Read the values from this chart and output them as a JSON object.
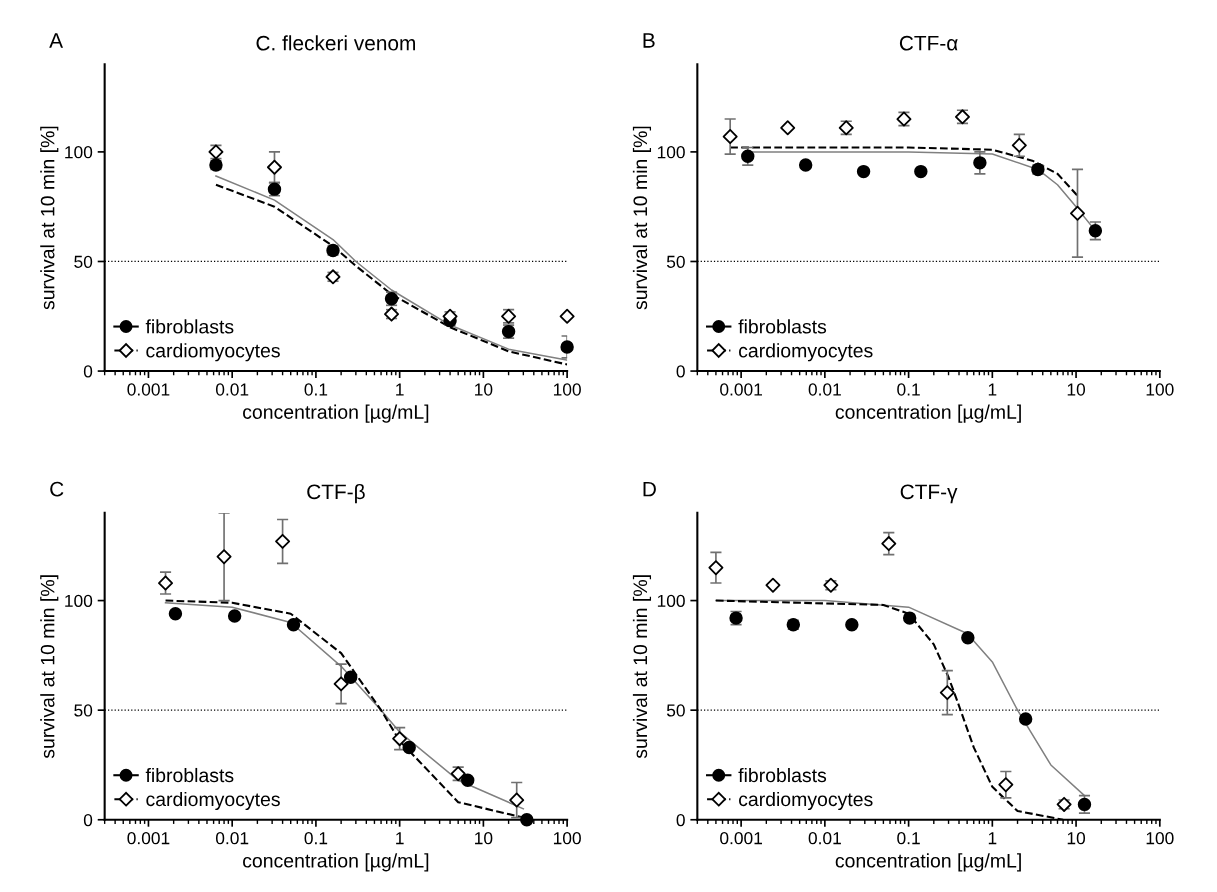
{
  "chart_data": [
    {
      "type": "scatter",
      "title": "C. fleckeri venom",
      "annotations": [
        "A"
      ],
      "xlabel": "concentration [µg/mL]",
      "ylabel": "survival at 10 min [%]",
      "log": "x",
      "xlim": [
        0.0003,
        100
      ],
      "xticks": [
        0.001,
        0.01,
        0.1,
        1,
        10,
        100
      ],
      "ylim": [
        0,
        140
      ],
      "yticks": [
        0,
        50,
        100
      ],
      "grid": false,
      "legend": "bottom left",
      "ref_lines": [
        {
          "axis": "y",
          "value": 50,
          "line_style": "dotted",
          "color": "#000000"
        }
      ],
      "series": [
        {
          "type": "line",
          "color": "#808080",
          "line_style": "solid",
          "x": [
            0.0064,
            0.032,
            0.16,
            0.3,
            0.8,
            4,
            20,
            100
          ],
          "values": [
            89,
            78,
            60,
            50,
            37,
            21,
            10,
            5
          ]
        },
        {
          "type": "line",
          "color": "#000000",
          "line_style": "dashed",
          "x": [
            0.0064,
            0.032,
            0.16,
            0.3,
            0.8,
            4,
            20,
            100
          ],
          "values": [
            85,
            75,
            57,
            48,
            35,
            20,
            9,
            3
          ]
        },
        {
          "type": "scatter",
          "name": "fibroblasts",
          "color": "#000000",
          "marker": "circle",
          "line_style": "solid",
          "x": [
            0.0064,
            0.032,
            0.16,
            0.8,
            4,
            20,
            100
          ],
          "values": [
            94,
            83,
            55,
            33,
            23,
            18,
            11
          ],
          "errors": [
            2,
            3,
            2,
            3,
            2,
            3,
            5
          ]
        },
        {
          "type": "scatter",
          "name": "cardiomyocytes",
          "color": "#000000",
          "marker": "diamond",
          "line_style": "dashed",
          "x": [
            0.0064,
            0.032,
            0.16,
            0.8,
            4,
            20,
            100
          ],
          "values": [
            100,
            93,
            43,
            26,
            25,
            25,
            25
          ],
          "errors": [
            3,
            7,
            2,
            2,
            2,
            3,
            null
          ]
        }
      ]
    },
    {
      "type": "scatter",
      "title": "CTF-α",
      "annotations": [
        "B"
      ],
      "xlabel": "concentration [µg/mL]",
      "ylabel": "survival at 10 min [%]",
      "log": "x",
      "xlim": [
        0.0003,
        100
      ],
      "xticks": [
        0.001,
        0.01,
        0.1,
        1,
        10,
        100
      ],
      "ylim": [
        0,
        140
      ],
      "yticks": [
        0,
        50,
        100
      ],
      "grid": false,
      "legend": "bottom left",
      "ref_lines": [
        {
          "axis": "y",
          "value": 50,
          "line_style": "dotted",
          "color": "#000000"
        }
      ],
      "series": [
        {
          "type": "line",
          "color": "#808080",
          "line_style": "solid",
          "x": [
            0.0012,
            0.1,
            1,
            3.5,
            6,
            10,
            17
          ],
          "values": [
            100,
            100,
            99,
            92,
            85,
            75,
            64
          ]
        },
        {
          "type": "line",
          "color": "#000000",
          "line_style": "dashed",
          "x": [
            0.00074,
            0.1,
            1,
            3,
            6,
            10.4
          ],
          "values": [
            102,
            102,
            101,
            96,
            90,
            80
          ]
        },
        {
          "type": "scatter",
          "name": "fibroblasts",
          "color": "#000000",
          "marker": "circle",
          "line_style": "solid",
          "x": [
            0.0012,
            0.0059,
            0.029,
            0.14,
            0.71,
            3.5,
            17
          ],
          "values": [
            98,
            94,
            91,
            91,
            95,
            92,
            64
          ],
          "errors": [
            4,
            null,
            null,
            null,
            5,
            2,
            4
          ]
        },
        {
          "type": "scatter",
          "name": "cardiomyocytes",
          "color": "#000000",
          "marker": "diamond",
          "line_style": "dashed",
          "x": [
            0.00074,
            0.0036,
            0.018,
            0.088,
            0.44,
            2.1,
            10.4
          ],
          "values": [
            107,
            111,
            111,
            115,
            116,
            103,
            72
          ],
          "errors": [
            8,
            null,
            3,
            3,
            3,
            5,
            20
          ]
        }
      ]
    },
    {
      "type": "scatter",
      "title": "CTF-β",
      "annotations": [
        "C"
      ],
      "xlabel": "concentration [µg/mL]",
      "ylabel": "survival at 10 min [%]",
      "log": "x",
      "xlim": [
        0.0003,
        100
      ],
      "xticks": [
        0.001,
        0.01,
        0.1,
        1,
        10,
        100
      ],
      "ylim": [
        0,
        140
      ],
      "yticks": [
        0,
        50,
        100
      ],
      "grid": false,
      "legend": "bottom left",
      "ref_lines": [
        {
          "axis": "y",
          "value": 50,
          "line_style": "dotted",
          "color": "#000000"
        }
      ],
      "series": [
        {
          "type": "line",
          "color": "#808080",
          "line_style": "solid",
          "x": [
            0.0016,
            0.01,
            0.05,
            0.2,
            0.6,
            1,
            5,
            30
          ],
          "values": [
            99,
            97,
            90,
            70,
            50,
            40,
            18,
            5
          ]
        },
        {
          "type": "line",
          "color": "#000000",
          "line_style": "dashed",
          "x": [
            0.0016,
            0.01,
            0.05,
            0.2,
            0.6,
            1,
            5,
            30
          ],
          "values": [
            100,
            99,
            94,
            76,
            50,
            36,
            8,
            1
          ]
        },
        {
          "type": "scatter",
          "name": "fibroblasts",
          "color": "#000000",
          "marker": "circle",
          "line_style": "solid",
          "x": [
            0.0021,
            0.0107,
            0.054,
            0.26,
            1.3,
            6.5,
            33
          ],
          "values": [
            94,
            93,
            89,
            65,
            33,
            18,
            0
          ]
        },
        {
          "type": "scatter",
          "name": "cardiomyocytes",
          "color": "#000000",
          "marker": "diamond",
          "line_style": "dashed",
          "x": [
            0.0016,
            0.008,
            0.04,
            0.2,
            1.0,
            5,
            25
          ],
          "values": [
            108,
            120,
            127,
            62,
            37,
            21,
            9
          ],
          "errors": [
            5,
            20,
            10,
            9,
            5,
            3,
            8
          ]
        }
      ]
    },
    {
      "type": "scatter",
      "title": "CTF-γ",
      "annotations": [
        "D"
      ],
      "xlabel": "concentration [µg/mL]",
      "ylabel": "survival at 10 min [%]",
      "log": "x",
      "xlim": [
        0.0003,
        100
      ],
      "xticks": [
        0.001,
        0.01,
        0.1,
        1,
        10,
        100
      ],
      "ylim": [
        0,
        140
      ],
      "yticks": [
        0,
        50,
        100
      ],
      "grid": false,
      "legend": "bottom left",
      "ref_lines": [
        {
          "axis": "y",
          "value": 50,
          "line_style": "dotted",
          "color": "#000000"
        }
      ],
      "series": [
        {
          "type": "line",
          "color": "#808080",
          "line_style": "solid",
          "x": [
            0.0005,
            0.01,
            0.1,
            0.5,
            1,
            2,
            5,
            12.6
          ],
          "values": [
            100,
            100,
            97,
            85,
            72,
            50,
            25,
            11
          ]
        },
        {
          "type": "line",
          "color": "#000000",
          "line_style": "dashed",
          "x": [
            0.0005,
            0.05,
            0.1,
            0.2,
            0.3,
            0.4,
            0.6,
            1,
            2,
            7
          ],
          "values": [
            100,
            98,
            94,
            80,
            65,
            52,
            33,
            15,
            4,
            0
          ]
        },
        {
          "type": "scatter",
          "name": "fibroblasts",
          "color": "#000000",
          "marker": "circle",
          "line_style": "solid",
          "x": [
            0.00087,
            0.0042,
            0.021,
            0.103,
            0.51,
            2.5,
            12.6
          ],
          "values": [
            92,
            89,
            89,
            92,
            83,
            46,
            7
          ],
          "errors": [
            3,
            2,
            null,
            null,
            null,
            null,
            4
          ]
        },
        {
          "type": "scatter",
          "name": "cardiomyocytes",
          "color": "#000000",
          "marker": "diamond",
          "line_style": "dashed",
          "x": [
            0.0005,
            0.0024,
            0.0118,
            0.058,
            0.29,
            1.45,
            7.2
          ],
          "values": [
            115,
            107,
            107,
            126,
            58,
            16,
            7
          ],
          "errors": [
            7,
            null,
            2,
            5,
            10,
            6,
            2
          ]
        }
      ]
    }
  ]
}
